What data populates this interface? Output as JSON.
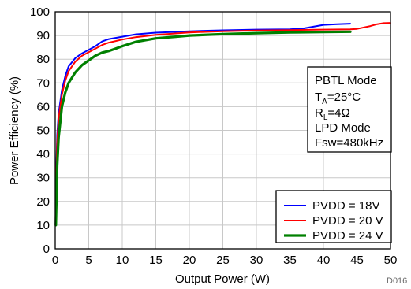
{
  "chart_data": {
    "type": "line",
    "xlabel": "Output Power (W)",
    "ylabel": "Power Efficiency (%)",
    "xlim": [
      0,
      50
    ],
    "ylim": [
      0,
      100
    ],
    "xticks": [
      0,
      5,
      10,
      15,
      20,
      25,
      30,
      35,
      40,
      45,
      50
    ],
    "yticks": [
      0,
      10,
      20,
      30,
      40,
      50,
      60,
      70,
      80,
      90,
      100
    ],
    "grid": true,
    "legend_position": "bottom-right",
    "annotation": {
      "line1": "PBTL Mode",
      "line2_main": "T",
      "line2_sub": "A",
      "line2_rest": "=25°C",
      "line3_main": "R",
      "line3_sub": "L",
      "line3_rest": "=4Ω",
      "line4": "LPD Mode",
      "line5": "Fsw=480kHz"
    },
    "corner_label": "D016",
    "series": [
      {
        "name": "PVDD = 18V",
        "color": "#0000ff",
        "x": [
          0.1,
          0.3,
          0.5,
          1,
          1.5,
          2,
          3,
          4,
          5,
          6,
          7,
          8,
          10,
          12,
          15,
          20,
          25,
          30,
          35,
          37,
          40,
          42,
          44
        ],
        "y": [
          28,
          48,
          57,
          67,
          73,
          77,
          80.5,
          82.5,
          84,
          85.5,
          87.5,
          88.5,
          89.5,
          90.5,
          91.2,
          91.8,
          92.2,
          92.5,
          92.6,
          93,
          94.5,
          94.8,
          95
        ]
      },
      {
        "name": "PVDD = 20 V",
        "color": "#ff0000",
        "x": [
          0.1,
          0.3,
          0.5,
          1,
          1.5,
          2,
          3,
          4,
          5,
          6,
          7,
          8,
          10,
          12,
          15,
          20,
          25,
          30,
          35,
          40,
          44,
          45,
          47,
          48,
          49,
          50
        ],
        "y": [
          25,
          45,
          55,
          65,
          71,
          75,
          79,
          81.5,
          83,
          84.5,
          86,
          87,
          88.3,
          89.3,
          90.3,
          91.3,
          91.8,
          92.1,
          92.3,
          92.5,
          92.6,
          92.8,
          94,
          94.8,
          95.2,
          95.3
        ]
      },
      {
        "name": "PVDD = 24 V",
        "color": "#008000",
        "x": [
          0.1,
          0.3,
          0.5,
          1,
          1.5,
          2,
          3,
          4,
          5,
          6,
          7,
          8,
          9,
          10,
          12,
          15,
          18,
          20,
          25,
          30,
          35,
          40,
          44
        ],
        "y": [
          10,
          35,
          47,
          60,
          66,
          70,
          74.5,
          77.5,
          79.5,
          81.5,
          82.8,
          83.5,
          84.5,
          85.5,
          87.3,
          88.8,
          89.5,
          90,
          90.6,
          91,
          91.3,
          91.5,
          91.6
        ]
      }
    ]
  }
}
